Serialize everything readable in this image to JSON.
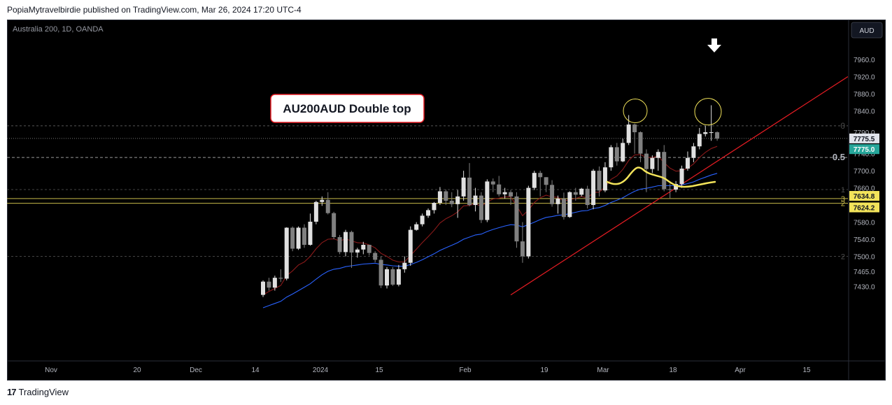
{
  "header": {
    "text": "PopiaMytravelbirdie published on TradingView.com, Mar 26, 2024 17:20 UTC-4"
  },
  "footer": {
    "logo": "17",
    "brand": "TradingView"
  },
  "symbol": "Australia 200, 1D, OANDA",
  "currency_button": "AUD",
  "annotation": "AU200AUD Double top",
  "colors": {
    "up": "#e0e0e0",
    "down": "#808080",
    "ema_short": "#8b1a1a",
    "ema_long": "#2962ff",
    "trendline": "#e51c23",
    "annotation_border": "#e51c23",
    "marker": "#f2e35a"
  },
  "chart_data": {
    "type": "candlestick",
    "ylim": [
      7410,
      8000
    ],
    "y_ticks": [
      "7960.0",
      "7920.0",
      "7880.0",
      "7840.0",
      "7790.0",
      "7740.0",
      "7700.0",
      "7660.0",
      "7580.0",
      "7540.0",
      "7500.0",
      "7465.0",
      "7430.0"
    ],
    "x_ticks": [
      "Nov",
      "20",
      "Dec",
      "14",
      "2024",
      "15",
      "Feb",
      "19",
      "Mar",
      "18",
      "Apr",
      "15"
    ],
    "price_labels": [
      {
        "value": 7775.5,
        "text": "7775.5"
      },
      {
        "value": 7775.0,
        "text": "7775.0"
      },
      {
        "value": 7634.8,
        "text": "7634.8"
      },
      {
        "value": 7624.2,
        "text": "7624.2"
      }
    ],
    "fib_levels": [
      {
        "label": "0",
        "value": 7805
      },
      {
        "label": "0.5",
        "value": 7731
      },
      {
        "label": "1",
        "value": 7656
      },
      {
        "label": "3",
        "value": 7635
      },
      {
        "label": "2",
        "value": 7624
      },
      {
        "label": "2",
        "value": 7500
      }
    ],
    "candles": [
      [
        7410,
        7441,
        7405,
        7444
      ],
      [
        7441,
        7427,
        7420,
        7450
      ],
      [
        7427,
        7450,
        7420,
        7455
      ],
      [
        7450,
        7448,
        7440,
        7470
      ],
      [
        7448,
        7567,
        7444,
        7568
      ],
      [
        7567,
        7518,
        7512,
        7570
      ],
      [
        7518,
        7567,
        7515,
        7570
      ],
      [
        7567,
        7527,
        7520,
        7575
      ],
      [
        7527,
        7581,
        7525,
        7600
      ],
      [
        7581,
        7627,
        7575,
        7630
      ],
      [
        7627,
        7632,
        7618,
        7640
      ],
      [
        7632,
        7601,
        7598,
        7650
      ],
      [
        7601,
        7545,
        7540,
        7604
      ],
      [
        7545,
        7510,
        7505,
        7550
      ],
      [
        7510,
        7557,
        7500,
        7562
      ],
      [
        7557,
        7509,
        7473,
        7560
      ],
      [
        7509,
        7516,
        7497,
        7520
      ],
      [
        7516,
        7527,
        7505,
        7534
      ],
      [
        7527,
        7508,
        7502,
        7525
      ],
      [
        7508,
        7492,
        7486,
        7512
      ],
      [
        7492,
        7432,
        7426,
        7500
      ],
      [
        7432,
        7470,
        7425,
        7475
      ],
      [
        7470,
        7434,
        7431,
        7475
      ],
      [
        7434,
        7470,
        7430,
        7480
      ],
      [
        7470,
        7485,
        7462,
        7500
      ],
      [
        7485,
        7562,
        7478,
        7570
      ],
      [
        7562,
        7575,
        7560,
        7580
      ],
      [
        7575,
        7595,
        7570,
        7600
      ],
      [
        7595,
        7608,
        7590,
        7612
      ],
      [
        7608,
        7625,
        7600,
        7627
      ],
      [
        7625,
        7652,
        7620,
        7662
      ],
      [
        7652,
        7630,
        7620,
        7656
      ],
      [
        7630,
        7622,
        7615,
        7650
      ],
      [
        7622,
        7640,
        7590,
        7655
      ],
      [
        7640,
        7684,
        7630,
        7700
      ],
      [
        7684,
        7620,
        7617,
        7718
      ],
      [
        7620,
        7642,
        7605,
        7660
      ],
      [
        7642,
        7585,
        7578,
        7650
      ],
      [
        7585,
        7675,
        7580,
        7680
      ],
      [
        7675,
        7668,
        7650,
        7682
      ],
      [
        7668,
        7645,
        7640,
        7688
      ],
      [
        7645,
        7650,
        7635,
        7660
      ],
      [
        7650,
        7640,
        7620,
        7655
      ],
      [
        7640,
        7535,
        7520,
        7650
      ],
      [
        7535,
        7500,
        7485,
        7580
      ],
      [
        7500,
        7660,
        7495,
        7665
      ],
      [
        7660,
        7695,
        7655,
        7700
      ],
      [
        7695,
        7685,
        7640,
        7700
      ],
      [
        7685,
        7667,
        7650,
        7685
      ],
      [
        7667,
        7622,
        7616,
        7678
      ],
      [
        7622,
        7635,
        7600,
        7642
      ],
      [
        7635,
        7592,
        7586,
        7649
      ],
      [
        7592,
        7650,
        7590,
        7652
      ],
      [
        7650,
        7644,
        7630,
        7660
      ],
      [
        7644,
        7658,
        7640,
        7660
      ],
      [
        7658,
        7620,
        7612,
        7665
      ],
      [
        7620,
        7700,
        7610,
        7704
      ],
      [
        7700,
        7654,
        7640,
        7710
      ],
      [
        7654,
        7708,
        7650,
        7720
      ],
      [
        7708,
        7755,
        7700,
        7760
      ],
      [
        7755,
        7722,
        7712,
        7765
      ],
      [
        7722,
        7765,
        7720,
        7775
      ],
      [
        7765,
        7808,
        7760,
        7830
      ],
      [
        7808,
        7790,
        7740,
        7810
      ],
      [
        7790,
        7740,
        7720,
        7792
      ],
      [
        7740,
        7704,
        7650,
        7750
      ],
      [
        7704,
        7730,
        7695,
        7736
      ],
      [
        7730,
        7744,
        7700,
        7750
      ],
      [
        7744,
        7657,
        7652,
        7760
      ],
      [
        7657,
        7656,
        7636,
        7670
      ],
      [
        7656,
        7669,
        7650,
        7676
      ],
      [
        7669,
        7705,
        7660,
        7712
      ],
      [
        7705,
        7730,
        7700,
        7745
      ],
      [
        7730,
        7757,
        7720,
        7765
      ],
      [
        7757,
        7786,
        7750,
        7800
      ],
      [
        7786,
        7790,
        7780,
        7805
      ],
      [
        7790,
        7790,
        7770,
        7853
      ],
      [
        7790,
        7775,
        7770,
        7792
      ]
    ],
    "ema_short": [
      [
        7410,
        7418,
        7425,
        7432,
        7455,
        7466,
        7480,
        7487,
        7500,
        7518,
        7532,
        7540,
        7541,
        7536,
        7541,
        7536,
        7532,
        7531,
        7527,
        7520,
        7507,
        7500,
        7491,
        7487,
        7487,
        7502,
        7517,
        7532,
        7546,
        7561,
        7578,
        7588,
        7595,
        7604,
        7618,
        7619,
        7623,
        7617,
        7627,
        7634,
        7636,
        7639,
        7639,
        7618,
        7595,
        7608,
        7626,
        7637,
        7643,
        7639,
        7638,
        7629,
        7633,
        7635,
        7640,
        7636,
        7649,
        7650,
        7662,
        7680,
        7688,
        7703,
        7724,
        7737,
        7738,
        7731,
        7731,
        7734,
        7719,
        7706,
        7699,
        7700,
        7706,
        7716,
        7731,
        7743,
        7752,
        7757
      ]
    ],
    "ema_long": [
      [
        7380,
        7385,
        7390,
        7395,
        7405,
        7412,
        7420,
        7428,
        7436,
        7447,
        7457,
        7465,
        7470,
        7472,
        7476,
        7478,
        7480,
        7482,
        7483,
        7484,
        7481,
        7480,
        7478,
        7477,
        7477,
        7481,
        7486,
        7492,
        7499,
        7506,
        7514,
        7520,
        7526,
        7532,
        7540,
        7545,
        7550,
        7552,
        7558,
        7563,
        7567,
        7571,
        7574,
        7573,
        7569,
        7574,
        7580,
        7586,
        7591,
        7593,
        7596,
        7597,
        7600,
        7603,
        7606,
        7607,
        7612,
        7614,
        7619,
        7626,
        7631,
        7637,
        7645,
        7652,
        7657,
        7659,
        7662,
        7665,
        7665,
        7665,
        7665,
        7667,
        7670,
        7674,
        7680,
        7685,
        7690,
        7694
      ]
    ]
  }
}
